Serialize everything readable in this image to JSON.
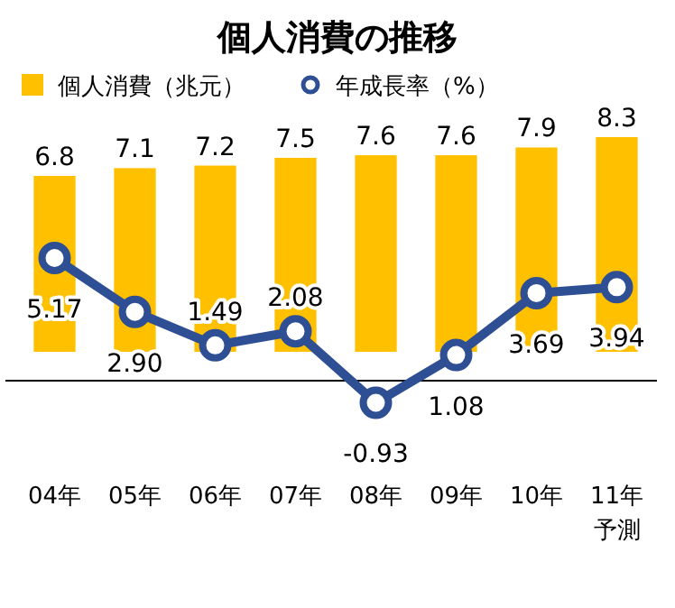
{
  "chart_data": {
    "type": "bar",
    "title": "個人消費の推移",
    "categories": [
      "04年",
      "05年",
      "06年",
      "07年",
      "08年",
      "09年",
      "10年",
      "11年予測"
    ],
    "series": [
      {
        "name": "個人消費（兆元）",
        "color": "#ffc000",
        "values": [
          6.8,
          7.1,
          7.2,
          7.5,
          7.6,
          7.6,
          7.9,
          8.3
        ]
      },
      {
        "name": "年成長率（%）",
        "type": "line",
        "axis": "y2",
        "color": "#2f4f94",
        "marker": "circle",
        "values": [
          5.17,
          2.9,
          1.49,
          2.08,
          -0.93,
          1.08,
          3.69,
          3.94
        ],
        "value_labels": [
          "5.17",
          "2.90",
          "1.49",
          "2.08",
          "-0.93",
          "1.08",
          "3.69",
          "3.94"
        ]
      }
    ],
    "tick_labels": "x",
    "legend": "top",
    "data_labels": true,
    "ref_lines": [
      {
        "axis": "y2",
        "value": 0,
        "color": "#000000"
      }
    ]
  }
}
